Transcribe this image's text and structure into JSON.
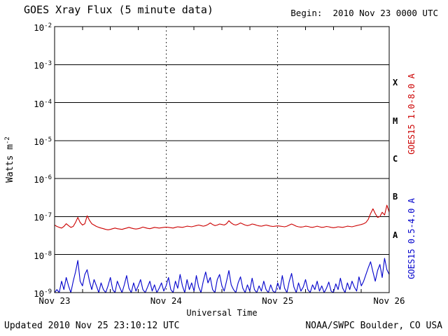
{
  "header": {
    "title": "GOES Xray Flux (5 minute data)",
    "begin_label": "Begin:  2010 Nov 23 0000 UTC"
  },
  "footer": {
    "updated": "Updated 2010 Nov 25 23:10:12 UTC",
    "source": "NOAA/SWPC Boulder, CO USA"
  },
  "axes": {
    "y_title": "Watts m",
    "y_title_exp": "-2",
    "x_title": "Universal Time",
    "log_base": "10",
    "y_tick_exponents": [
      -2,
      -3,
      -4,
      -5,
      -6,
      -7,
      -8,
      -9
    ],
    "x_tick_labels": [
      "Nov 23",
      "Nov 24",
      "Nov 25",
      "Nov 26"
    ],
    "x_tick_hours": [
      0,
      24,
      48,
      72
    ],
    "flare_classes": [
      "X",
      "M",
      "C",
      "B",
      "A"
    ]
  },
  "legend": {
    "long_channel": "GOES15 1.0-8.0 A",
    "short_channel": "GOES15 0.5-4.0 A"
  },
  "colors": {
    "long": "#cc0000",
    "short": "#0000cc",
    "grid": "#000000",
    "background": "#ffffff"
  },
  "chart_data": {
    "type": "line",
    "title": "GOES Xray Flux (5 minute data)",
    "xlabel": "Universal Time",
    "ylabel": "Watts m^-2",
    "x_unit": "hours since 2010 Nov 23 0000 UTC",
    "x_start_hours": 0,
    "x_step_hours": 0.5,
    "x_range_hours": [
      0,
      72
    ],
    "ylog": true,
    "ylim": [
      1e-09,
      0.01
    ],
    "grid": "horizontal solid per decade, vertical dotted per day",
    "legend_position": "right, rotated",
    "series": [
      {
        "name": "GOES15 1.0-8.0 A",
        "color": "#cc0000",
        "values": [
          6e-08,
          5.5e-08,
          5.2e-08,
          5e-08,
          5.5e-08,
          6.5e-08,
          5.8e-08,
          5.2e-08,
          5.5e-08,
          7e-08,
          9.5e-08,
          7e-08,
          6e-08,
          6.5e-08,
          1.05e-07,
          8e-08,
          6.5e-08,
          6e-08,
          5.5e-08,
          5.2e-08,
          5e-08,
          4.8e-08,
          4.6e-08,
          4.5e-08,
          4.6e-08,
          4.8e-08,
          5e-08,
          4.8e-08,
          4.7e-08,
          4.6e-08,
          4.8e-08,
          5e-08,
          5.2e-08,
          5e-08,
          4.8e-08,
          4.7e-08,
          4.8e-08,
          5e-08,
          5.3e-08,
          5.1e-08,
          4.9e-08,
          4.8e-08,
          5e-08,
          5.2e-08,
          5.1e-08,
          5e-08,
          5.1e-08,
          5.2e-08,
          5.3e-08,
          5.2e-08,
          5.1e-08,
          5e-08,
          5.2e-08,
          5.4e-08,
          5.3e-08,
          5.2e-08,
          5.4e-08,
          5.6e-08,
          5.5e-08,
          5.4e-08,
          5.6e-08,
          5.8e-08,
          6e-08,
          5.8e-08,
          5.6e-08,
          5.8e-08,
          6.2e-08,
          6.8e-08,
          6.2e-08,
          5.8e-08,
          6e-08,
          6.4e-08,
          6.2e-08,
          6e-08,
          6.5e-08,
          7.8e-08,
          6.8e-08,
          6.2e-08,
          6e-08,
          6.3e-08,
          6.8e-08,
          6.4e-08,
          6e-08,
          5.8e-08,
          6e-08,
          6.4e-08,
          6.2e-08,
          5.9e-08,
          5.7e-08,
          5.6e-08,
          5.8e-08,
          6e-08,
          5.8e-08,
          5.6e-08,
          5.5e-08,
          5.6e-08,
          5.7e-08,
          5.6e-08,
          5.5e-08,
          5.4e-08,
          5.6e-08,
          6e-08,
          6.4e-08,
          6e-08,
          5.6e-08,
          5.4e-08,
          5.3e-08,
          5.4e-08,
          5.6e-08,
          5.5e-08,
          5.3e-08,
          5.2e-08,
          5.4e-08,
          5.6e-08,
          5.4e-08,
          5.2e-08,
          5.3e-08,
          5.5e-08,
          5.4e-08,
          5.2e-08,
          5.1e-08,
          5.2e-08,
          5.4e-08,
          5.3e-08,
          5.2e-08,
          5.4e-08,
          5.6e-08,
          5.5e-08,
          5.4e-08,
          5.6e-08,
          5.8e-08,
          6e-08,
          6.2e-08,
          6.5e-08,
          7e-08,
          8.5e-08,
          1.2e-07,
          1.6e-07,
          1.2e-07,
          9.5e-08,
          1e-07,
          1.3e-07,
          1.1e-07,
          2e-07,
          1.3e-07
        ]
      },
      {
        "name": "GOES15 0.5-4.0 A",
        "color": "#0000cc",
        "values": [
          1e-09,
          1.2e-09,
          1e-09,
          2e-09,
          1.2e-09,
          2.5e-09,
          1.5e-09,
          1e-09,
          2e-09,
          3.5e-09,
          7e-09,
          2e-09,
          1.5e-09,
          3e-09,
          4e-09,
          2e-09,
          1.2e-09,
          2.2e-09,
          1.5e-09,
          1e-09,
          1.8e-09,
          1.2e-09,
          1e-09,
          1.5e-09,
          2.5e-09,
          1.2e-09,
          1e-09,
          2e-09,
          1.4e-09,
          1e-09,
          1.6e-09,
          2.8e-09,
          1.3e-09,
          1e-09,
          1.8e-09,
          1.1e-09,
          1.5e-09,
          2.2e-09,
          1.2e-09,
          1e-09,
          1.4e-09,
          2e-09,
          1.1e-09,
          1.6e-09,
          1e-09,
          1.3e-09,
          1.8e-09,
          1.1e-09,
          1.5e-09,
          2.5e-09,
          1.2e-09,
          1e-09,
          2e-09,
          1.3e-09,
          3e-09,
          1.5e-09,
          1e-09,
          2.2e-09,
          1.2e-09,
          1.8e-09,
          1.1e-09,
          2.8e-09,
          1.4e-09,
          1e-09,
          2e-09,
          3.5e-09,
          1.8e-09,
          2.5e-09,
          1.2e-09,
          1e-09,
          2.2e-09,
          3e-09,
          1.5e-09,
          1.1e-09,
          2e-09,
          3.8e-09,
          1.6e-09,
          1.2e-09,
          1e-09,
          1.8e-09,
          2.6e-09,
          1.3e-09,
          1e-09,
          1.6e-09,
          1.1e-09,
          2.4e-09,
          1.2e-09,
          1e-09,
          1.5e-09,
          1.1e-09,
          2e-09,
          1.2e-09,
          1e-09,
          1.6e-09,
          1.1e-09,
          1e-09,
          1.8e-09,
          1.2e-09,
          2.8e-09,
          1.3e-09,
          1e-09,
          2e-09,
          3.2e-09,
          1.4e-09,
          1e-09,
          1.8e-09,
          1.1e-09,
          1.4e-09,
          2.2e-09,
          1.2e-09,
          1e-09,
          1.6e-09,
          1.2e-09,
          2e-09,
          1.1e-09,
          1.5e-09,
          1e-09,
          1.3e-09,
          1.9e-09,
          1.1e-09,
          1e-09,
          1.7e-09,
          1.2e-09,
          2.4e-09,
          1.3e-09,
          1e-09,
          1.8e-09,
          1.2e-09,
          2e-09,
          1.4e-09,
          1.1e-09,
          2.6e-09,
          1.5e-09,
          2e-09,
          3e-09,
          4.5e-09,
          6.5e-09,
          3.5e-09,
          2e-09,
          3.8e-09,
          5.5e-09,
          2.5e-09,
          8e-09,
          4e-09,
          3e-09
        ]
      }
    ]
  }
}
